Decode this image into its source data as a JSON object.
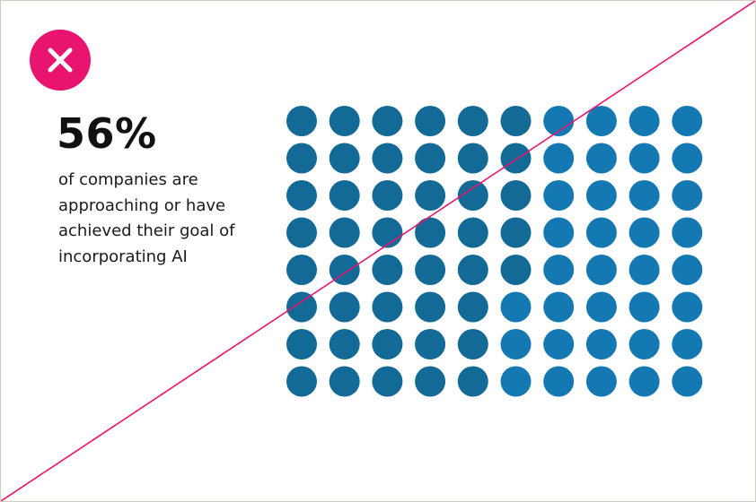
{
  "badge": {
    "icon": "close-icon",
    "color": "#e8146f"
  },
  "headline": {
    "value": "56%",
    "description": "of companies are approaching or have achieved their goal of incorporating AI"
  },
  "chart_data": {
    "type": "waffle",
    "rows": 8,
    "columns": 10,
    "total": 80,
    "highlighted_fraction": 0.56,
    "highlighted_color": "#136a97",
    "remaining_color": "#1479b3"
  },
  "overlay": {
    "icon": "strike-through-line",
    "color": "#e8146f"
  }
}
